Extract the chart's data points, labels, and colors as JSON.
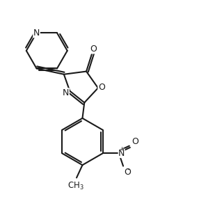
{
  "background_color": "#ffffff",
  "line_color": "#1a1a1a",
  "lw": 1.5,
  "figsize": [
    2.86,
    2.86
  ],
  "dpi": 100,
  "xlim": [
    0,
    10
  ],
  "ylim": [
    0,
    10
  ]
}
